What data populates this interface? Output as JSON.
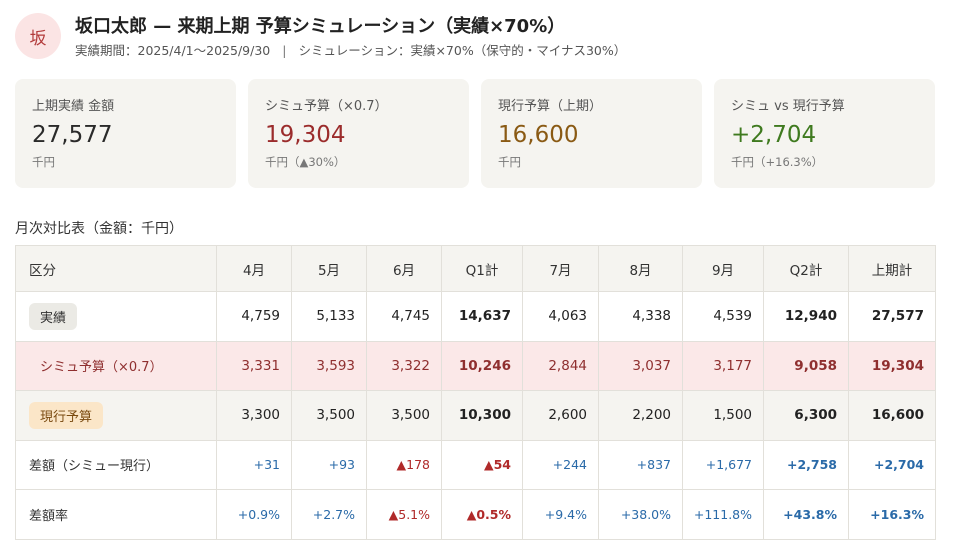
{
  "header": {
    "avatar": "坂",
    "title": "坂口太郎 — 来期上期 予算シミュレーション（実績×70%）",
    "period": "実績期間：2025/4/1〜2025/9/30",
    "separator": "|",
    "simulation": "シミュレーション：実績×70%（保守的・マイナス30%）"
  },
  "colors": {
    "sim_value": "#9b2c2c",
    "current_value": "#8a5a14",
    "diff_value": "#3f7a1f",
    "positive": "#2a6aa8",
    "negative": "#b02a2a"
  },
  "cards": [
    {
      "label": "上期実績 金額",
      "value": "27,577",
      "unit": "千円",
      "tone": "default"
    },
    {
      "label": "シミュ予算（×0.7）",
      "value": "19,304",
      "unit": "千円（▲30%）",
      "tone": "sim"
    },
    {
      "label": "現行予算（上期）",
      "value": "16,600",
      "unit": "千円",
      "tone": "current"
    },
    {
      "label": "シミュ vs 現行予算",
      "value": "+2,704",
      "unit": "千円（+16.3%）",
      "tone": "diff"
    }
  ],
  "table": {
    "title": "月次対比表（金額：千円）",
    "headers": [
      "区分",
      "4月",
      "5月",
      "6月",
      "Q1計",
      "7月",
      "8月",
      "9月",
      "Q2計",
      "上期計"
    ],
    "rows": {
      "actual": {
        "label": "実績",
        "values": [
          "4,759",
          "5,133",
          "4,745",
          "14,637",
          "4,063",
          "4,338",
          "4,539",
          "12,940",
          "27,577"
        ]
      },
      "sim": {
        "label": "シミュ予算（×0.7）",
        "values": [
          "3,331",
          "3,593",
          "3,322",
          "10,246",
          "2,844",
          "3,037",
          "3,177",
          "9,058",
          "19,304"
        ]
      },
      "current": {
        "label": "現行予算",
        "values": [
          "3,300",
          "3,500",
          "3,500",
          "10,300",
          "2,600",
          "2,200",
          "1,500",
          "6,300",
          "16,600"
        ]
      },
      "diff": {
        "label": "差額（シミュー現行）",
        "values": [
          "+31",
          "+93",
          "▲178",
          "▲54",
          "+244",
          "+837",
          "+1,677",
          "+2,758",
          "+2,704"
        ]
      },
      "rate": {
        "label": "差額率",
        "values": [
          "+0.9%",
          "+2.7%",
          "▲5.1%",
          "▲0.5%",
          "+9.4%",
          "+38.0%",
          "+111.8%",
          "+43.8%",
          "+16.3%"
        ]
      }
    }
  }
}
